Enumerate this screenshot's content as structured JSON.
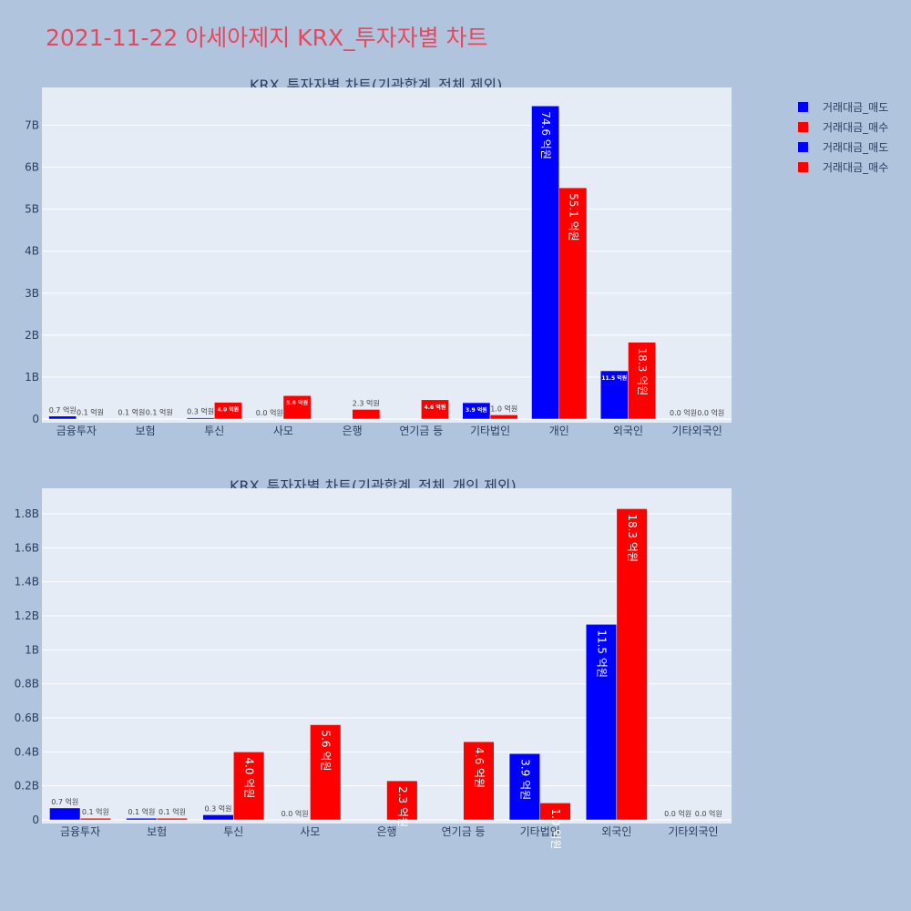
{
  "page": {
    "title": "2021-11-22 아세아제지 KRX_투자자별 차트"
  },
  "legend": {
    "items": [
      {
        "label": "거래대금_매도",
        "color": "#0000ff"
      },
      {
        "label": "거래대금_매수",
        "color": "#ff0000"
      },
      {
        "label": "거래대금_매도",
        "color": "#0000ff"
      },
      {
        "label": "거래대금_매수",
        "color": "#ff0000"
      }
    ]
  },
  "chart_data": [
    {
      "type": "bar",
      "title": "KRX_투자자별 차트(기관합계_전체 제외)",
      "categories": [
        "금융투자",
        "보험",
        "투신",
        "사모",
        "은행",
        "연기금 등",
        "기타법인",
        "개인",
        "외국인",
        "기타외국인"
      ],
      "series": [
        {
          "name": "거래대금_매도",
          "color": "#0000ff",
          "values": [
            70000000,
            10000000,
            30000000,
            0,
            0,
            0,
            390000000,
            7460000000,
            1150000000,
            0
          ],
          "labels": [
            "0.7 억원",
            "0.1 억원",
            "0.3 억원",
            "0.0 억원",
            "",
            "",
            "3.9 억원",
            "74.6 억원",
            "11.5 억원",
            "0.0 억원"
          ]
        },
        {
          "name": "거래대금_매수",
          "color": "#ff0000",
          "values": [
            10000000,
            10000000,
            400000000,
            560000000,
            230000000,
            460000000,
            100000000,
            5510000000,
            1830000000,
            0
          ],
          "labels": [
            "0.1 억원",
            "0.1 억원",
            "4.0 억원",
            "5.6 억원",
            "2.3 억원",
            "4.6 억원",
            "1.0 억원",
            "55.1 억원",
            "18.3 억원",
            "0.0 억원"
          ]
        }
      ],
      "ylim": [
        0,
        7900000000
      ],
      "yticks": [
        0,
        1000000000,
        2000000000,
        3000000000,
        4000000000,
        5000000000,
        6000000000,
        7000000000
      ],
      "ytick_labels": [
        "0",
        "1B",
        "2B",
        "3B",
        "4B",
        "5B",
        "6B",
        "7B"
      ],
      "grid": true
    },
    {
      "type": "bar",
      "title": "KRX_투자자별 차트(기관합계_전체_개인 제외)",
      "categories": [
        "금융투자",
        "보험",
        "투신",
        "사모",
        "은행",
        "연기금 등",
        "기타법인",
        "외국인",
        "기타외국인"
      ],
      "series": [
        {
          "name": "거래대금_매도",
          "color": "#0000ff",
          "values": [
            70000000,
            10000000,
            30000000,
            0,
            0,
            0,
            390000000,
            1150000000,
            0
          ],
          "labels": [
            "0.7 억원",
            "0.1 억원",
            "0.3 억원",
            "0.0 억원",
            "",
            "",
            "3.9 억원",
            "11.5 억원",
            "0.0 억원"
          ]
        },
        {
          "name": "거래대금_매수",
          "color": "#ff0000",
          "values": [
            10000000,
            10000000,
            400000000,
            560000000,
            230000000,
            460000000,
            100000000,
            1830000000,
            0
          ],
          "labels": [
            "0.1 억원",
            "0.1 억원",
            "4.0 억원",
            "5.6 억원",
            "2.3 억원",
            "4.6 억원",
            "1.0 억원",
            "18.3 억원",
            "0.0 억원"
          ]
        }
      ],
      "ylim": [
        0,
        1950000000
      ],
      "yticks": [
        0,
        200000000,
        400000000,
        600000000,
        800000000,
        1000000000,
        1200000000,
        1400000000,
        1600000000,
        1800000000
      ],
      "ytick_labels": [
        "0",
        "0.2B",
        "0.4B",
        "0.6B",
        "0.8B",
        "1B",
        "1.2B",
        "1.4B",
        "1.6B",
        "1.8B"
      ],
      "grid": true
    }
  ]
}
